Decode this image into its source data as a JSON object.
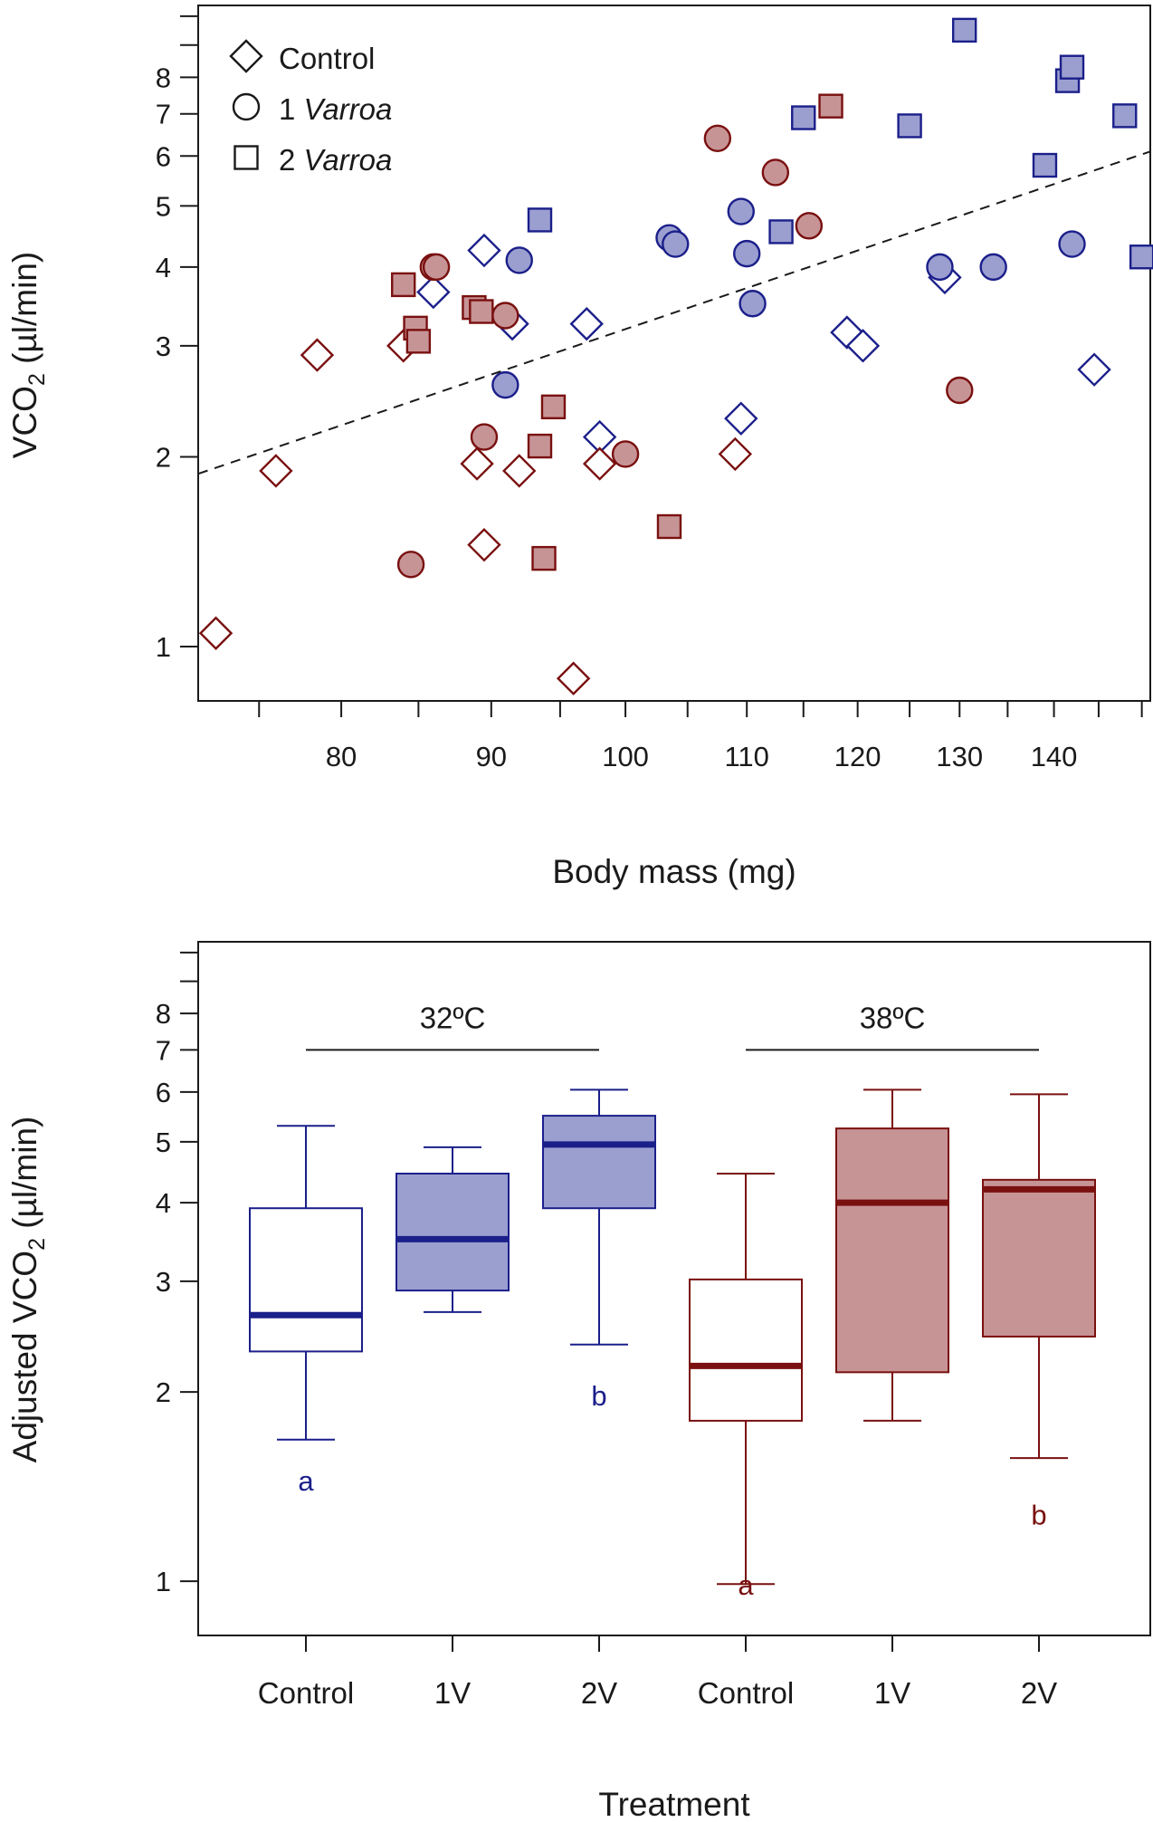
{
  "colors": {
    "blue_stroke": "#1b1f8a",
    "blue_fill": "#9b9fd0",
    "red_stroke": "#7a1010",
    "red_fill": "#c79496",
    "black": "#1a1a1a"
  },
  "chart_data": [
    {
      "type": "scatter",
      "title": "",
      "xlabel": "Body mass (mg)",
      "ylabel_prefix": "VCO",
      "ylabel_sub": "2",
      "ylabel_suffix": " (µl/min)",
      "xscale": "log",
      "yscale": "log",
      "xlim": [
        71.5,
        151
      ],
      "ylim": [
        0.82,
        10.4
      ],
      "xticks": [
        80,
        90,
        100,
        110,
        120,
        130,
        140
      ],
      "yticks_labeled": [
        1,
        2,
        3,
        4,
        5,
        6,
        7,
        8
      ],
      "yticks_minor": [
        9,
        10
      ],
      "legend": {
        "position": "top-left",
        "entries": [
          {
            "marker": "diamond",
            "prefix": "",
            "text": "Control"
          },
          {
            "marker": "circle",
            "prefix": "1 ",
            "text": "Varroa"
          },
          {
            "marker": "square",
            "prefix": "2 ",
            "text": "Varroa"
          }
        ]
      },
      "regression_line": {
        "style": "dashed",
        "x": [
          71.5,
          151
        ],
        "y": [
          1.88,
          6.1
        ]
      },
      "series": [
        {
          "name": "Control 32°C",
          "marker": "diamond",
          "group": "blue",
          "filled": false,
          "points": [
            [
              86,
              3.65
            ],
            [
              89.5,
              4.25
            ],
            [
              91.5,
              3.25
            ],
            [
              97,
              3.25
            ],
            [
              98,
              2.15
            ],
            [
              109.5,
              2.3
            ],
            [
              119,
              3.15
            ],
            [
              120.5,
              3.0
            ],
            [
              128.5,
              3.85
            ],
            [
              144.5,
              2.75
            ]
          ]
        },
        {
          "name": "1 Varroa 32°C",
          "marker": "circle",
          "group": "blue",
          "filled": true,
          "points": [
            [
              91,
              2.6
            ],
            [
              92,
              4.1
            ],
            [
              103.5,
              4.45
            ],
            [
              104,
              4.35
            ],
            [
              109.5,
              4.9
            ],
            [
              110,
              4.2
            ],
            [
              110.5,
              3.5
            ],
            [
              128,
              4.0
            ],
            [
              133.5,
              4.0
            ],
            [
              142,
              4.35
            ]
          ]
        },
        {
          "name": "2 Varroa 32°C",
          "marker": "square",
          "group": "blue",
          "filled": true,
          "points": [
            [
              93.5,
              4.75
            ],
            [
              113,
              4.55
            ],
            [
              115,
              6.9
            ],
            [
              125,
              6.7
            ],
            [
              130.5,
              9.5
            ],
            [
              139,
              5.8
            ],
            [
              141.5,
              7.9
            ],
            [
              142,
              8.3
            ],
            [
              148,
              6.95
            ],
            [
              150,
              4.15
            ]
          ]
        },
        {
          "name": "Control 38°C",
          "marker": "diamond",
          "group": "red",
          "filled": false,
          "points": [
            [
              72.5,
              1.05
            ],
            [
              76,
              1.9
            ],
            [
              78.5,
              2.9
            ],
            [
              84,
              3.0
            ],
            [
              89,
              1.95
            ],
            [
              89.5,
              1.45
            ],
            [
              92,
              1.9
            ],
            [
              96,
              0.89
            ],
            [
              98,
              1.95
            ],
            [
              109,
              2.02
            ]
          ]
        },
        {
          "name": "1 Varroa 38°C",
          "marker": "circle",
          "group": "red",
          "filled": true,
          "points": [
            [
              84.5,
              1.35
            ],
            [
              86,
              4.0
            ],
            [
              86.2,
              4.0
            ],
            [
              89.5,
              2.15
            ],
            [
              91,
              3.35
            ],
            [
              100,
              2.02
            ],
            [
              107.5,
              6.4
            ],
            [
              112.5,
              5.65
            ],
            [
              115.5,
              4.65
            ],
            [
              130,
              2.55
            ]
          ]
        },
        {
          "name": "2 Varroa 38°C",
          "marker": "square",
          "group": "red",
          "filled": true,
          "points": [
            [
              84,
              3.75
            ],
            [
              84.8,
              3.2
            ],
            [
              85,
              3.05
            ],
            [
              88.8,
              3.45
            ],
            [
              89.3,
              3.4
            ],
            [
              93.5,
              2.08
            ],
            [
              93.8,
              1.38
            ],
            [
              94.5,
              2.4
            ],
            [
              103.5,
              1.55
            ],
            [
              117.5,
              7.2
            ]
          ]
        }
      ]
    },
    {
      "type": "box",
      "title": "",
      "xlabel": "Treatment",
      "ylabel_prefix": "Adjusted VCO",
      "ylabel_sub": "2",
      "ylabel_suffix": " (µl/min)",
      "yscale": "log",
      "ylim": [
        0.82,
        10.4
      ],
      "yticks_labeled": [
        1,
        2,
        3,
        4,
        5,
        6,
        7,
        8
      ],
      "yticks_minor": [
        9,
        10
      ],
      "categories": [
        "Control",
        "1V",
        "2V",
        "Control",
        "1V",
        "2V"
      ],
      "boxes": [
        {
          "label": "Control",
          "group": "blue",
          "filled": false,
          "whisker_low": 1.68,
          "q1": 2.32,
          "median": 2.65,
          "q3": 3.92,
          "whisker_high": 5.3,
          "letter": "a",
          "letter_value": 1.45
        },
        {
          "label": "1V",
          "group": "blue",
          "filled": true,
          "whisker_low": 2.68,
          "q1": 2.9,
          "median": 3.5,
          "q3": 4.45,
          "whisker_high": 4.9
        },
        {
          "label": "2V",
          "group": "blue",
          "filled": true,
          "whisker_low": 2.38,
          "q1": 3.92,
          "median": 4.95,
          "q3": 5.5,
          "whisker_high": 6.05,
          "letter": "b",
          "letter_value": 1.98
        },
        {
          "label": "Control",
          "group": "red",
          "filled": false,
          "whisker_low": 0.99,
          "q1": 1.8,
          "median": 2.2,
          "q3": 3.02,
          "whisker_high": 4.45,
          "letter": "a",
          "letter_value": 0.99
        },
        {
          "label": "1V",
          "group": "red",
          "filled": true,
          "whisker_low": 1.8,
          "q1": 2.15,
          "median": 4.0,
          "q3": 5.25,
          "whisker_high": 6.05
        },
        {
          "label": "2V",
          "group": "red",
          "filled": true,
          "whisker_low": 1.57,
          "q1": 2.45,
          "median": 4.2,
          "q3": 4.35,
          "whisker_high": 5.95,
          "letter": "b",
          "letter_value": 1.28
        }
      ],
      "group_labels": [
        {
          "text": "32ºC",
          "from_index": 0,
          "to_index": 2,
          "value": 7.0
        },
        {
          "text": "38ºC",
          "from_index": 3,
          "to_index": 5,
          "value": 7.0
        }
      ]
    }
  ]
}
